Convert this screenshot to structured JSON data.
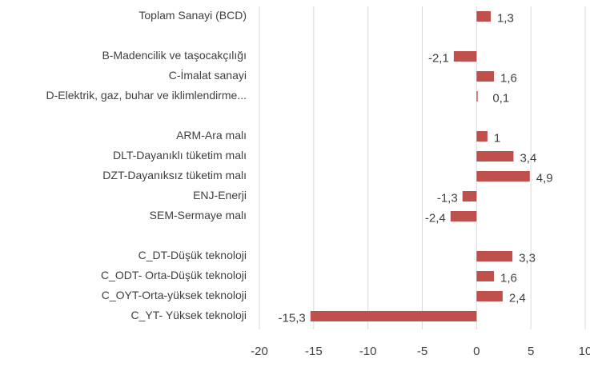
{
  "chart_data": {
    "type": "bar",
    "orientation": "horizontal",
    "categories": [
      "Toplam Sanayi (BCD)",
      null,
      "B-Madencilik ve taşocakçılığı",
      "C-İmalat sanayi",
      "D-Elektrik, gaz, buhar ve iklimlendirme...",
      null,
      "ARM-Ara malı",
      "DLT-Dayanıklı tüketim malı",
      "DZT-Dayanıksız tüketim malı",
      "ENJ-Enerji",
      "SEM-Sermaye malı",
      null,
      "C_DT-Düşük teknoloji",
      "C_ODT- Orta-Düşük teknoloji",
      "C_OYT-Orta-yüksek teknoloji",
      "C_YT- Yüksek teknoloji"
    ],
    "values": [
      1.3,
      null,
      -2.1,
      1.6,
      0.1,
      null,
      1,
      3.4,
      4.9,
      -1.3,
      -2.4,
      null,
      3.3,
      1.6,
      2.4,
      -15.3
    ],
    "value_labels": [
      "1,3",
      null,
      "-2,1",
      "1,6",
      "0,1",
      null,
      "1",
      "3,4",
      "4,9",
      "-1,3",
      "-2,4",
      null,
      "3,3",
      "1,6",
      "2,4",
      "-15,3"
    ],
    "color": "#c0504d",
    "xlim": [
      -20,
      10
    ],
    "xticks": [
      -20,
      -15,
      -10,
      -5,
      0,
      5,
      10
    ],
    "grid": true
  }
}
